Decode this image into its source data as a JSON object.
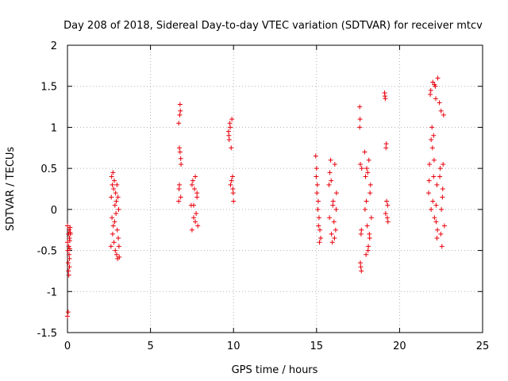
{
  "chart_data": {
    "type": "scatter",
    "title": "Day 208 of 2018, Sidereal Day-to-day VTEC variation (SDTVAR) for receiver mtcv",
    "xlabel": "GPS time / hours",
    "ylabel": "SDTVAR / TECUs",
    "xlim": [
      0,
      25
    ],
    "ylim": [
      -1.5,
      2
    ],
    "xticks": [
      0,
      5,
      10,
      15,
      20,
      25
    ],
    "xtick_labels": [
      "0",
      "5",
      "10",
      "15",
      "20",
      "25"
    ],
    "yticks": [
      -1.5,
      -1,
      -0.5,
      0,
      0.5,
      1,
      1.5,
      2
    ],
    "ytick_labels": [
      "-1.5",
      "-1",
      "-0.5",
      "0",
      "0.5",
      "1",
      "1.5",
      "2"
    ],
    "grid": true,
    "marker": "+",
    "color": "#e8000b",
    "series": [
      {
        "name": "SDTVAR",
        "x": [
          0.0,
          0.0,
          0.0,
          0.02,
          0.04,
          0.04,
          0.06,
          0.06,
          0.08,
          0.08,
          0.1,
          0.1,
          0.12,
          0.12,
          0.12,
          0.14,
          0.14,
          0.16,
          0.16,
          0.18,
          2.62,
          2.64,
          2.66,
          2.68,
          2.7,
          2.72,
          2.74,
          2.76,
          2.78,
          2.8,
          2.82,
          2.84,
          2.86,
          2.88,
          2.9,
          2.92,
          2.94,
          2.96,
          2.98,
          3.0,
          3.02,
          3.04,
          3.06,
          3.08,
          3.1,
          3.12,
          6.7,
          6.72,
          6.74,
          6.76,
          6.78,
          6.8,
          6.82,
          6.84,
          6.7,
          6.74,
          6.78,
          6.82,
          7.45,
          7.5,
          7.55,
          7.6,
          7.65,
          7.7,
          7.75,
          7.8,
          7.85,
          7.5,
          7.6,
          7.7,
          7.8,
          9.7,
          9.74,
          9.78,
          9.82,
          9.86,
          9.9,
          9.94,
          9.98,
          10.0,
          9.72,
          9.8,
          9.88,
          9.96,
          14.95,
          15.0,
          15.05,
          15.1,
          15.15,
          15.2,
          15.25,
          14.98,
          15.08,
          15.18,
          15.02,
          15.12,
          15.75,
          15.8,
          15.85,
          15.9,
          15.95,
          16.0,
          16.05,
          16.1,
          16.15,
          16.2,
          15.78,
          15.88,
          15.98,
          16.08,
          16.18,
          17.6,
          17.62,
          17.64,
          17.66,
          17.68,
          17.7,
          17.72,
          17.6,
          17.64,
          17.7,
          17.9,
          17.95,
          18.0,
          18.05,
          18.1,
          18.15,
          18.2,
          18.25,
          18.3,
          17.92,
          18.02,
          18.12,
          18.22,
          17.98,
          18.08,
          18.18,
          19.1,
          19.14,
          19.18,
          19.22,
          19.26,
          19.3,
          19.12,
          19.2,
          19.28,
          19.16,
          21.75,
          21.8,
          21.85,
          21.9,
          21.95,
          22.0,
          22.05,
          22.1,
          22.15,
          22.2,
          22.25,
          22.3,
          21.78,
          21.88,
          21.98,
          22.08,
          22.18,
          22.28,
          22.0,
          22.1,
          22.2,
          21.9,
          22.05,
          22.25,
          22.4,
          22.45,
          22.5,
          22.55,
          22.6,
          22.65,
          22.7,
          22.42,
          22.52,
          22.62,
          22.48,
          22.58
        ],
        "y": [
          -0.2,
          -0.4,
          -1.3,
          -0.5,
          -0.65,
          -1.25,
          -0.75,
          -0.3,
          -0.8,
          -0.45,
          -0.55,
          -0.25,
          -0.7,
          -0.35,
          -0.6,
          -0.48,
          -0.38,
          -0.28,
          -0.22,
          -0.3,
          -0.45,
          0.15,
          0.4,
          -0.1,
          0.3,
          -0.3,
          0.45,
          -0.2,
          0.25,
          -0.4,
          0.35,
          -0.15,
          0.05,
          -0.5,
          0.2,
          -0.05,
          0.1,
          -0.55,
          0.3,
          -0.25,
          -0.6,
          0.15,
          -0.35,
          0.0,
          -0.45,
          -0.58,
          0.1,
          0.25,
          0.75,
          1.15,
          1.28,
          1.2,
          0.62,
          0.55,
          1.05,
          0.3,
          0.7,
          0.15,
          0.05,
          -0.25,
          0.35,
          -0.1,
          0.25,
          0.4,
          -0.05,
          0.15,
          -0.2,
          0.3,
          0.05,
          -0.15,
          0.2,
          0.95,
          0.85,
          1.05,
          0.3,
          0.75,
          1.1,
          0.4,
          0.2,
          0.1,
          0.9,
          1.0,
          0.35,
          0.25,
          0.65,
          0.5,
          0.3,
          0.1,
          -0.1,
          -0.25,
          -0.35,
          0.4,
          0.0,
          -0.4,
          0.2,
          -0.2,
          0.3,
          0.45,
          0.6,
          -0.3,
          -0.4,
          0.1,
          -0.15,
          0.55,
          -0.25,
          0.2,
          -0.1,
          0.35,
          0.05,
          -0.35,
          0.0,
          1.25,
          1.1,
          0.55,
          -0.7,
          -0.3,
          -0.75,
          0.5,
          1.0,
          -0.65,
          -0.25,
          0.7,
          0.4,
          0.1,
          -0.2,
          -0.5,
          0.6,
          -0.35,
          0.3,
          -0.1,
          0.0,
          0.5,
          -0.45,
          0.2,
          -0.55,
          0.45,
          -0.3,
          1.42,
          1.35,
          0.75,
          0.1,
          -0.1,
          -0.15,
          1.38,
          0.8,
          0.05,
          -0.05,
          0.2,
          0.55,
          1.4,
          0.85,
          1.0,
          1.55,
          0.4,
          -0.1,
          1.5,
          0.05,
          -0.35,
          1.6,
          0.35,
          1.45,
          0.75,
          0.6,
          1.35,
          -0.25,
          0.1,
          1.52,
          -0.15,
          0.0,
          0.9,
          0.3,
          1.3,
          0.5,
          1.2,
          -0.45,
          0.25,
          1.15,
          -0.2,
          0.4,
          0.0,
          0.55,
          -0.3,
          0.15
        ]
      }
    ]
  }
}
